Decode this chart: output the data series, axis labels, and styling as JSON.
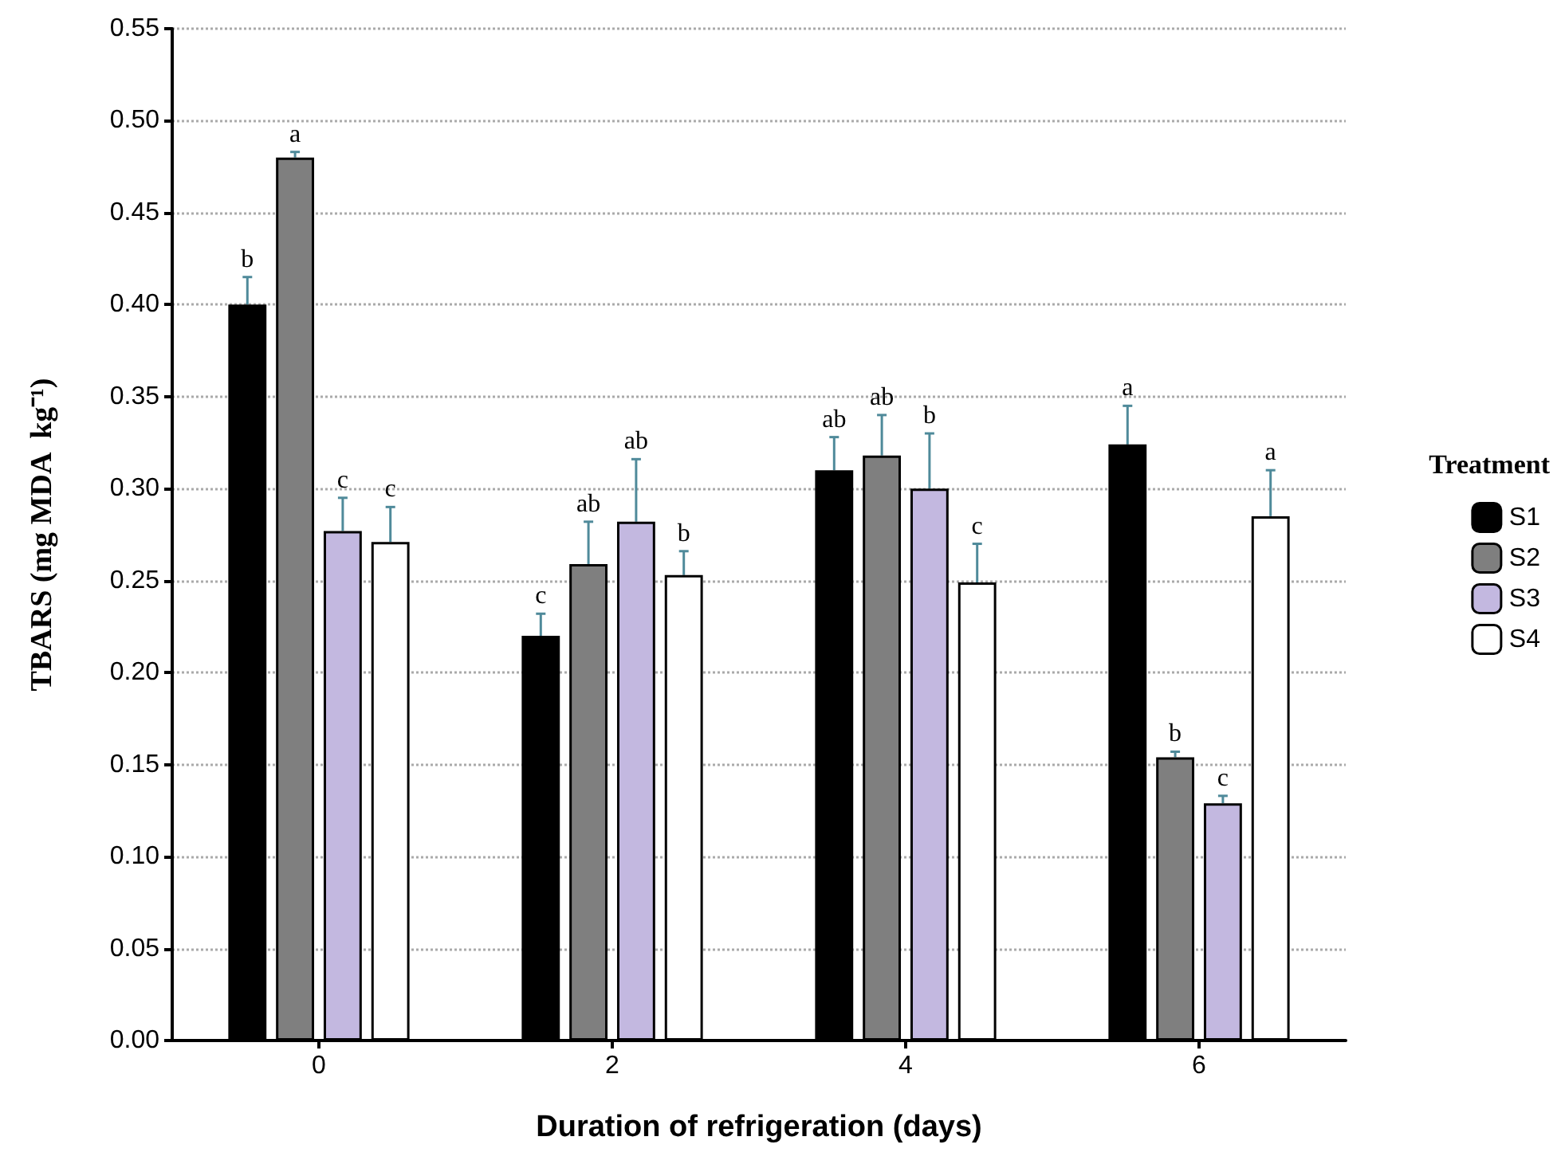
{
  "chart_data": {
    "type": "bar",
    "xlabel": "Duration of refrigeration (days)",
    "ylabel": "TBARS (mg MDA  kg⁻¹)",
    "legend_title": "Treatment",
    "categories": [
      "0",
      "2",
      "4",
      "6"
    ],
    "series": [
      {
        "name": "S1",
        "color": "#000000",
        "values": [
          0.4,
          0.22,
          0.31,
          0.324
        ],
        "errors": [
          0.015,
          0.012,
          0.018,
          0.021
        ],
        "value_labels": [
          "b",
          "c",
          "ab",
          "a"
        ]
      },
      {
        "name": "S2",
        "color": "#7f7f7f",
        "values": [
          0.48,
          0.259,
          0.318,
          0.154
        ],
        "errors": [
          0.003,
          0.023,
          0.022,
          0.003
        ],
        "value_labels": [
          "a",
          "ab",
          "ab",
          "b"
        ]
      },
      {
        "name": "S3",
        "color": "#c3b8e0",
        "values": [
          0.277,
          0.282,
          0.3,
          0.129
        ],
        "errors": [
          0.018,
          0.034,
          0.03,
          0.004
        ],
        "value_labels": [
          "c",
          "ab",
          "b",
          "c"
        ]
      },
      {
        "name": "S4",
        "color": "#ffffff",
        "values": [
          0.271,
          0.253,
          0.249,
          0.285
        ],
        "errors": [
          0.019,
          0.013,
          0.021,
          0.025
        ],
        "value_labels": [
          "c",
          "b",
          "c",
          "a"
        ]
      }
    ],
    "ylim": [
      0,
      0.55
    ],
    "yticks": [
      {
        "value": 0,
        "label": "0.00"
      },
      0.05,
      {
        "value": 0.1,
        "label": "0.10"
      },
      0.15,
      {
        "value": 0.2,
        "label": "0.20"
      },
      0.25,
      {
        "value": 0.3,
        "label": "0.30"
      },
      0.35,
      {
        "value": 0.4,
        "label": "0.40"
      },
      0.45,
      {
        "value": 0.5,
        "label": "0.50"
      },
      0.55
    ],
    "grid": "y",
    "legend": "right"
  }
}
